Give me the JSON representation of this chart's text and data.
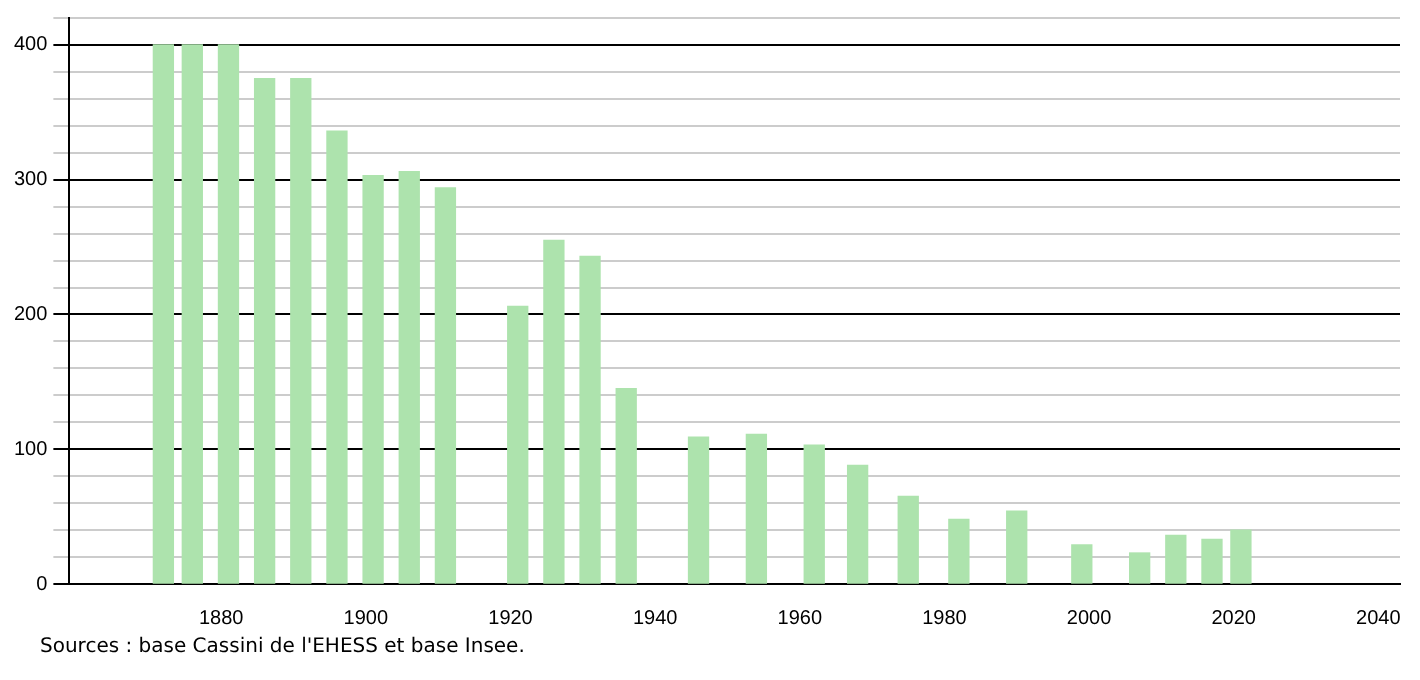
{
  "chart_data": {
    "type": "bar",
    "x": [
      1872,
      1876,
      1881,
      1886,
      1891,
      1896,
      1901,
      1906,
      1911,
      1921,
      1926,
      1931,
      1936,
      1946,
      1954,
      1962,
      1968,
      1975,
      1982,
      1990,
      1999,
      2007,
      2012,
      2017,
      2021
    ],
    "values": [
      400,
      400,
      400,
      375,
      375,
      336,
      303,
      306,
      294,
      206,
      255,
      243,
      145,
      109,
      111,
      103,
      88,
      65,
      48,
      54,
      29,
      23,
      36,
      33,
      40
    ],
    "color": "#ade3ad",
    "xlim": [
      1859,
      2043
    ],
    "xticks": [
      1880,
      1900,
      1920,
      1940,
      1960,
      1980,
      2000,
      2020,
      2040
    ],
    "ylim": [
      0,
      420
    ],
    "yticks": [
      0,
      {
        "value": 20,
        "label": null
      },
      {
        "value": 40,
        "label": null
      },
      {
        "value": 60,
        "label": null
      },
      {
        "value": 80,
        "label": null
      },
      100,
      {
        "value": 120,
        "label": null
      },
      {
        "value": 140,
        "label": null
      },
      {
        "value": 160,
        "label": null
      },
      {
        "value": 180,
        "label": null
      },
      200,
      {
        "value": 220,
        "label": null
      },
      {
        "value": 240,
        "label": null
      },
      {
        "value": 260,
        "label": null
      },
      {
        "value": 280,
        "label": null
      },
      300,
      {
        "value": 320,
        "label": null
      },
      {
        "value": 340,
        "label": null
      },
      {
        "value": 360,
        "label": null
      },
      {
        "value": 380,
        "label": null
      },
      400,
      {
        "value": 420,
        "label": null
      }
    ],
    "grid": "y",
    "legend": false,
    "annotations": [
      "Sources : base Cassini de l'EHESS et base Insee."
    ]
  }
}
